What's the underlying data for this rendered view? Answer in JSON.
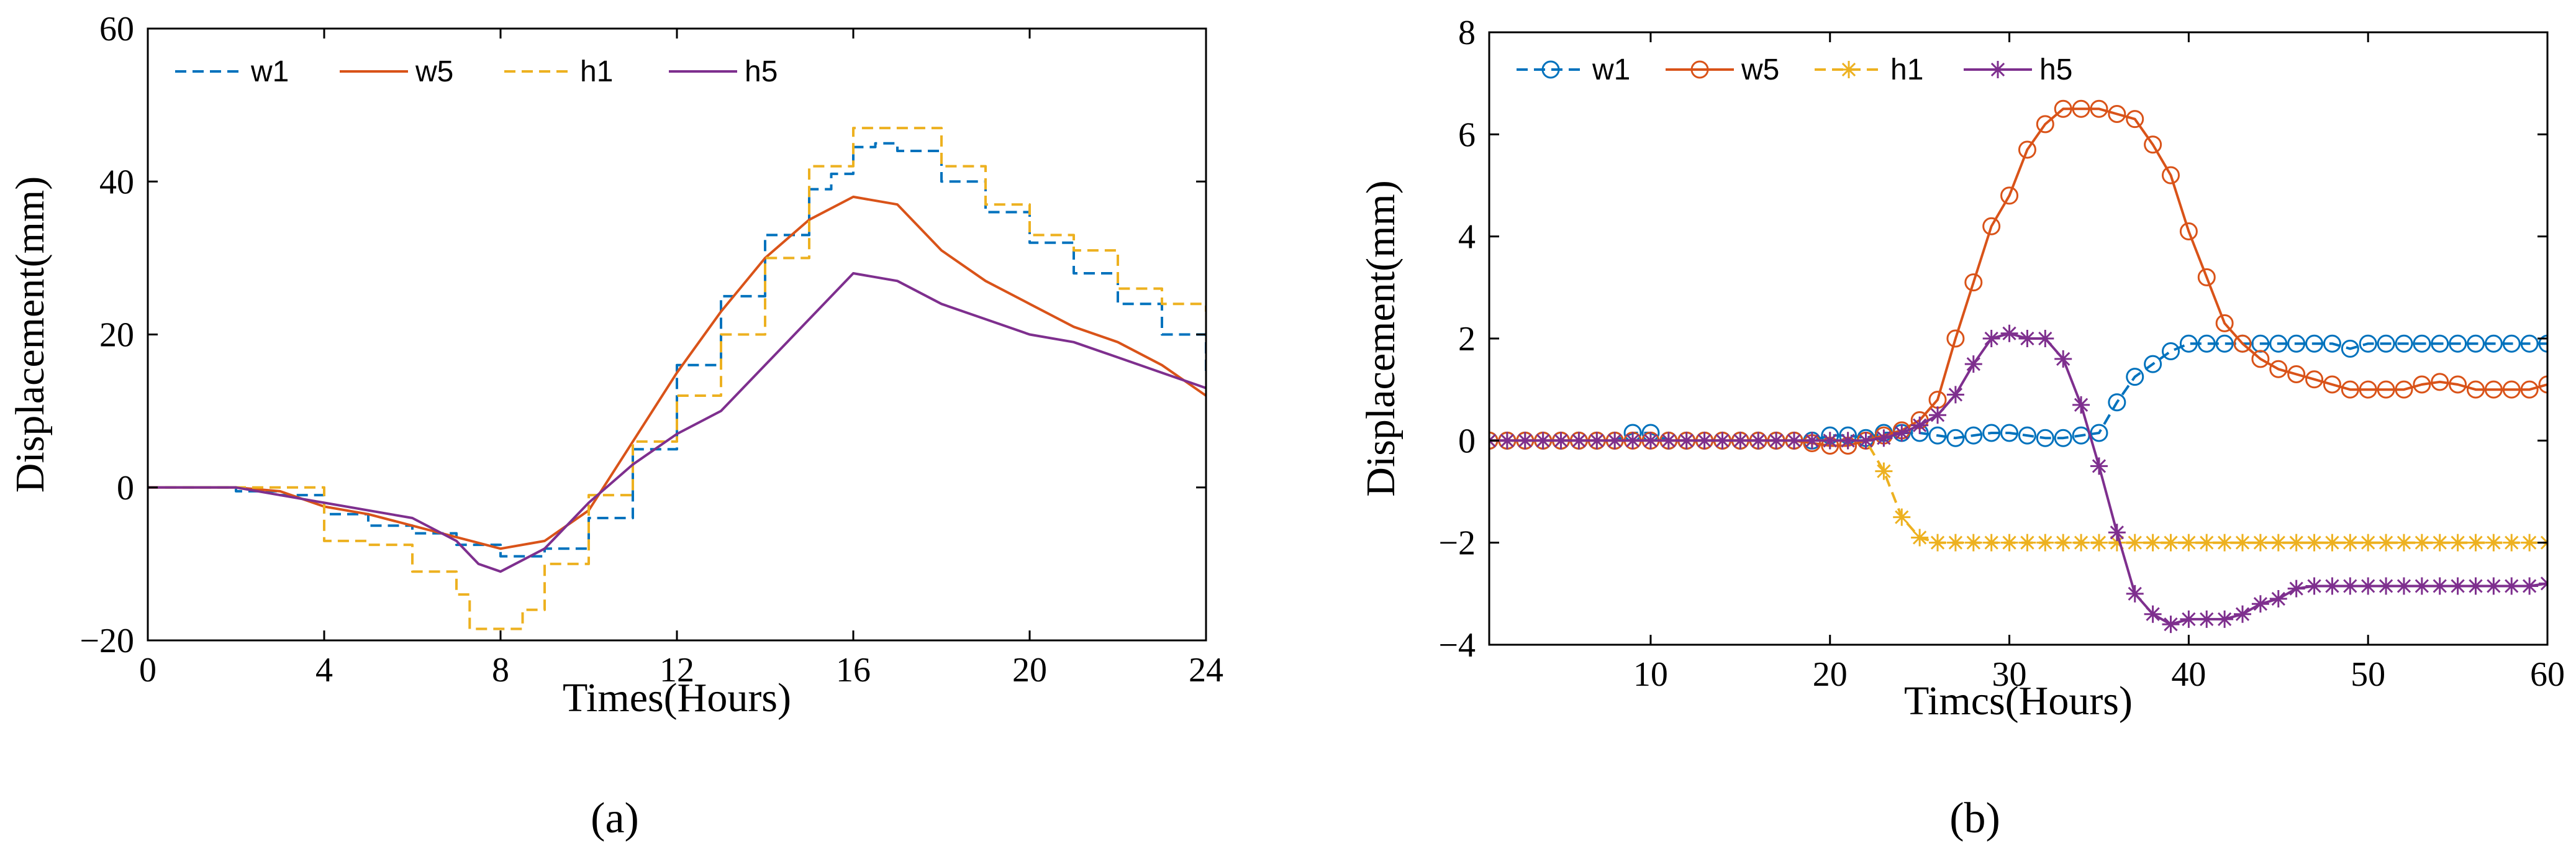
{
  "chart_data": [
    {
      "type": "line",
      "panel": "(a)",
      "xlabel": "Times(Hours)",
      "ylabel": "Displacement(mm)",
      "xlim": [
        0,
        24
      ],
      "ylim": [
        -20,
        60
      ],
      "xticks": [
        0,
        4,
        8,
        12,
        16,
        20,
        24
      ],
      "yticks": [
        -20,
        0,
        20,
        40,
        60
      ],
      "legend": "top-left",
      "series": [
        {
          "name": "w1",
          "color": "#0072BD",
          "dash": "dashed",
          "marker": "none",
          "step": true,
          "x": [
            0,
            2,
            3,
            4,
            5,
            6,
            7,
            8,
            9,
            10,
            11,
            12,
            13,
            14,
            15,
            15.5,
            16,
            16.5,
            17,
            18,
            19,
            20,
            21,
            22,
            23,
            24
          ],
          "y": [
            0,
            -0.5,
            -1,
            -3.5,
            -5,
            -6,
            -7.5,
            -9,
            -8,
            -4,
            5,
            16,
            25,
            33,
            39,
            41,
            44.5,
            45,
            44,
            40,
            36,
            32,
            28,
            24,
            20,
            15
          ]
        },
        {
          "name": "w5",
          "color": "#D95319",
          "dash": "solid",
          "marker": "none",
          "step": false,
          "x": [
            0,
            2,
            3,
            4,
            5,
            6,
            7,
            8,
            9,
            10,
            11,
            12,
            13,
            14,
            15,
            16,
            17,
            18,
            19,
            20,
            21,
            22,
            23,
            24
          ],
          "y": [
            0,
            0,
            -0.5,
            -2.5,
            -3.5,
            -5,
            -6.5,
            -8,
            -7,
            -3,
            6,
            15,
            23,
            30,
            35,
            38,
            37,
            31,
            27,
            24,
            21,
            19,
            16,
            12
          ]
        },
        {
          "name": "h1",
          "color": "#EDB120",
          "dash": "dashed",
          "marker": "none",
          "step": true,
          "x": [
            0,
            3,
            4,
            5,
            6,
            7,
            7.3,
            8,
            8.5,
            9,
            10,
            11,
            12,
            13,
            14,
            15,
            16,
            17,
            18,
            19,
            20,
            21,
            22,
            23,
            24
          ],
          "y": [
            0,
            0,
            -7,
            -7.5,
            -11,
            -14,
            -18.5,
            -18.5,
            -16,
            -10,
            -1,
            6,
            12,
            20,
            30,
            42,
            47,
            47,
            42,
            37,
            33,
            31,
            26,
            24,
            23
          ]
        },
        {
          "name": "h5",
          "color": "#7E2F8E",
          "dash": "solid",
          "marker": "none",
          "step": false,
          "x": [
            0,
            2,
            4,
            5,
            6,
            7,
            7.5,
            8,
            9,
            10,
            11,
            12,
            13,
            14,
            15,
            16,
            17,
            18,
            19,
            20,
            21,
            22,
            23,
            24
          ],
          "y": [
            0,
            0,
            -2,
            -3,
            -4,
            -7,
            -10,
            -11,
            -8,
            -2,
            3,
            7,
            10,
            16,
            22,
            28,
            27,
            24,
            22,
            20,
            19,
            17,
            15,
            13
          ]
        }
      ]
    },
    {
      "type": "line",
      "panel": "(b)",
      "xlabel": "Timcs(Hours)",
      "ylabel": "Displacement(mm)",
      "xlim": [
        1,
        60
      ],
      "ylim": [
        -4,
        8
      ],
      "xticks": [
        10,
        20,
        30,
        40,
        50,
        60
      ],
      "yticks": [
        -4,
        -2,
        0,
        2,
        4,
        6,
        8
      ],
      "legend": "top-left",
      "series": [
        {
          "name": "w1",
          "color": "#0072BD",
          "dash": "dashed",
          "marker": "circle",
          "x": [
            1,
            2,
            3,
            4,
            5,
            6,
            7,
            8,
            9,
            10,
            11,
            12,
            13,
            14,
            15,
            16,
            17,
            18,
            19,
            20,
            21,
            22,
            23,
            24,
            25,
            26,
            27,
            28,
            29,
            30,
            31,
            32,
            33,
            34,
            35,
            36,
            37,
            38,
            39,
            40,
            41,
            42,
            43,
            44,
            45,
            46,
            47,
            48,
            49,
            50,
            51,
            52,
            53,
            54,
            55,
            56,
            57,
            58,
            59,
            60
          ],
          "y": [
            0,
            0,
            0,
            0,
            0,
            0,
            0,
            0,
            0.15,
            0.15,
            0,
            0,
            0,
            0,
            0,
            0,
            0,
            0,
            0,
            0.1,
            0.1,
            0.05,
            0.15,
            0.15,
            0.15,
            0.1,
            0.05,
            0.1,
            0.15,
            0.15,
            0.1,
            0.05,
            0.05,
            0.1,
            0.15,
            0.75,
            1.25,
            1.5,
            1.75,
            1.9,
            1.9,
            1.9,
            1.9,
            1.9,
            1.9,
            1.9,
            1.9,
            1.9,
            1.8,
            1.9,
            1.9,
            1.9,
            1.9,
            1.9,
            1.9,
            1.9,
            1.9,
            1.9,
            1.9,
            1.9
          ]
        },
        {
          "name": "w5",
          "color": "#D95319",
          "dash": "solid",
          "marker": "circle",
          "x": [
            1,
            2,
            3,
            4,
            5,
            6,
            7,
            8,
            9,
            10,
            11,
            12,
            13,
            14,
            15,
            16,
            17,
            18,
            19,
            20,
            21,
            22,
            23,
            24,
            25,
            26,
            27,
            28,
            29,
            30,
            31,
            32,
            33,
            34,
            35,
            36,
            37,
            38,
            39,
            40,
            41,
            42,
            43,
            44,
            45,
            46,
            47,
            48,
            49,
            50,
            51,
            52,
            53,
            54,
            55,
            56,
            57,
            58,
            59,
            60
          ],
          "y": [
            0,
            0,
            0,
            0,
            0,
            0,
            0,
            0,
            0,
            0,
            0,
            0,
            0,
            0,
            0,
            0,
            0,
            0,
            -0.05,
            -0.1,
            -0.1,
            0,
            0.1,
            0.2,
            0.4,
            0.8,
            2.0,
            3.1,
            4.2,
            4.8,
            5.7,
            6.2,
            6.5,
            6.5,
            6.5,
            6.4,
            6.3,
            5.8,
            5.2,
            4.1,
            3.2,
            2.3,
            1.9,
            1.6,
            1.4,
            1.3,
            1.2,
            1.1,
            1.0,
            1.0,
            1.0,
            1.0,
            1.1,
            1.15,
            1.1,
            1.0,
            1.0,
            1.0,
            1.0,
            1.1
          ]
        },
        {
          "name": "h1",
          "color": "#EDB120",
          "dash": "dashed",
          "marker": "star",
          "x": [
            1,
            2,
            3,
            4,
            5,
            6,
            7,
            8,
            9,
            10,
            11,
            12,
            13,
            14,
            15,
            16,
            17,
            18,
            19,
            20,
            21,
            22,
            23,
            24,
            25,
            26,
            27,
            28,
            29,
            30,
            31,
            32,
            33,
            34,
            35,
            36,
            37,
            38,
            39,
            40,
            41,
            42,
            43,
            44,
            45,
            46,
            47,
            48,
            49,
            50,
            51,
            52,
            53,
            54,
            55,
            56,
            57,
            58,
            59,
            60
          ],
          "y": [
            0,
            0,
            0,
            0,
            0,
            0,
            0,
            0,
            0,
            0,
            0,
            0,
            0,
            0,
            0,
            0,
            0,
            0,
            0,
            0,
            0,
            0,
            -0.6,
            -1.5,
            -1.9,
            -2,
            -2,
            -2,
            -2,
            -2,
            -2,
            -2,
            -2,
            -2,
            -2,
            -2,
            -2,
            -2,
            -2,
            -2,
            -2,
            -2,
            -2,
            -2,
            -2,
            -2,
            -2,
            -2,
            -2,
            -2,
            -2,
            -2,
            -2,
            -2,
            -2,
            -2,
            -2,
            -2,
            -2,
            -2
          ]
        },
        {
          "name": "h5",
          "color": "#7E2F8E",
          "dash": "solid",
          "marker": "star",
          "x": [
            1,
            2,
            3,
            4,
            5,
            6,
            7,
            8,
            9,
            10,
            11,
            12,
            13,
            14,
            15,
            16,
            17,
            18,
            19,
            20,
            21,
            22,
            23,
            24,
            25,
            26,
            27,
            28,
            29,
            30,
            31,
            32,
            33,
            34,
            35,
            36,
            37,
            38,
            39,
            40,
            41,
            42,
            43,
            44,
            45,
            46,
            47,
            48,
            49,
            50,
            51,
            52,
            53,
            54,
            55,
            56,
            57,
            58,
            59,
            60
          ],
          "y": [
            0,
            0,
            0,
            0,
            0,
            0,
            0,
            0,
            0,
            0,
            0,
            0,
            0,
            0,
            0,
            0,
            0,
            0,
            0,
            0,
            0,
            0,
            0.05,
            0.15,
            0.3,
            0.5,
            0.9,
            1.5,
            2.0,
            2.1,
            2.0,
            2.0,
            1.6,
            0.7,
            -0.5,
            -1.8,
            -3.0,
            -3.4,
            -3.6,
            -3.5,
            -3.5,
            -3.5,
            -3.4,
            -3.2,
            -3.1,
            -2.9,
            -2.85,
            -2.85,
            -2.85,
            -2.85,
            -2.85,
            -2.85,
            -2.85,
            -2.85,
            -2.85,
            -2.85,
            -2.85,
            -2.85,
            -2.85,
            -2.8
          ]
        }
      ]
    }
  ]
}
